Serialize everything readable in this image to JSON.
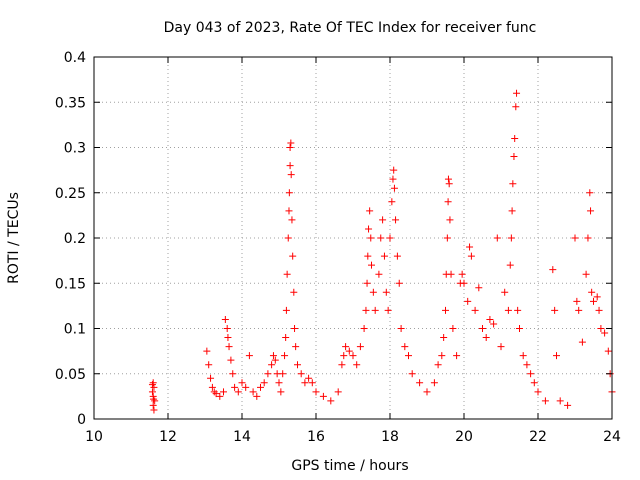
{
  "chart_data": {
    "type": "scatter",
    "title": "Day 043 of 2023, Rate Of TEC Index for receiver func",
    "xlabel": "GPS time / hours",
    "ylabel": "ROTI / TECUs",
    "xlim": [
      10,
      24
    ],
    "ylim": [
      0,
      0.4
    ],
    "x_ticks": [
      10,
      12,
      14,
      16,
      18,
      20,
      22,
      24
    ],
    "y_ticks": [
      0,
      0.05,
      0.1,
      0.15,
      0.2,
      0.25,
      0.3,
      0.35,
      0.4
    ],
    "x_tick_labels": [
      "10",
      "12",
      "14",
      "16",
      "18",
      "20",
      "22",
      "24"
    ],
    "y_tick_labels": [
      "0",
      "0.05",
      "0.1",
      "0.15",
      "0.2",
      "0.25",
      "0.3",
      "0.35",
      "0.4"
    ],
    "grid": true,
    "marker": "plus",
    "color": "#ff0000",
    "series": [
      {
        "values": [
          [
            11.6,
            0.04
          ],
          [
            11.62,
            0.035
          ],
          [
            11.58,
            0.03
          ],
          [
            11.6,
            0.025
          ],
          [
            11.64,
            0.02
          ],
          [
            11.6,
            0.015
          ],
          [
            11.62,
            0.01
          ],
          [
            11.58,
            0.038
          ],
          [
            11.61,
            0.022
          ],
          [
            13.05,
            0.075
          ],
          [
            13.1,
            0.06
          ],
          [
            13.15,
            0.045
          ],
          [
            13.2,
            0.035
          ],
          [
            13.25,
            0.03
          ],
          [
            13.3,
            0.028
          ],
          [
            13.4,
            0.025
          ],
          [
            13.5,
            0.03
          ],
          [
            13.55,
            0.11
          ],
          [
            13.6,
            0.1
          ],
          [
            13.62,
            0.09
          ],
          [
            13.65,
            0.08
          ],
          [
            13.7,
            0.065
          ],
          [
            13.75,
            0.05
          ],
          [
            13.8,
            0.035
          ],
          [
            13.9,
            0.03
          ],
          [
            14.0,
            0.04
          ],
          [
            14.1,
            0.035
          ],
          [
            14.2,
            0.07
          ],
          [
            14.3,
            0.03
          ],
          [
            14.4,
            0.025
          ],
          [
            14.5,
            0.035
          ],
          [
            14.6,
            0.04
          ],
          [
            14.7,
            0.05
          ],
          [
            14.8,
            0.06
          ],
          [
            14.85,
            0.07
          ],
          [
            14.9,
            0.065
          ],
          [
            14.95,
            0.05
          ],
          [
            15.0,
            0.04
          ],
          [
            15.05,
            0.03
          ],
          [
            15.1,
            0.05
          ],
          [
            15.15,
            0.07
          ],
          [
            15.18,
            0.09
          ],
          [
            15.2,
            0.12
          ],
          [
            15.22,
            0.16
          ],
          [
            15.25,
            0.2
          ],
          [
            15.27,
            0.23
          ],
          [
            15.28,
            0.25
          ],
          [
            15.3,
            0.28
          ],
          [
            15.3,
            0.3
          ],
          [
            15.32,
            0.305
          ],
          [
            15.33,
            0.27
          ],
          [
            15.35,
            0.22
          ],
          [
            15.37,
            0.18
          ],
          [
            15.4,
            0.14
          ],
          [
            15.42,
            0.1
          ],
          [
            15.45,
            0.08
          ],
          [
            15.5,
            0.06
          ],
          [
            15.6,
            0.05
          ],
          [
            15.7,
            0.04
          ],
          [
            15.8,
            0.045
          ],
          [
            15.9,
            0.04
          ],
          [
            16.0,
            0.03
          ],
          [
            16.2,
            0.025
          ],
          [
            16.4,
            0.02
          ],
          [
            16.6,
            0.03
          ],
          [
            16.7,
            0.06
          ],
          [
            16.75,
            0.07
          ],
          [
            16.8,
            0.08
          ],
          [
            16.9,
            0.075
          ],
          [
            17.0,
            0.07
          ],
          [
            17.1,
            0.06
          ],
          [
            17.2,
            0.08
          ],
          [
            17.3,
            0.1
          ],
          [
            17.35,
            0.12
          ],
          [
            17.38,
            0.15
          ],
          [
            17.4,
            0.18
          ],
          [
            17.42,
            0.21
          ],
          [
            17.45,
            0.23
          ],
          [
            17.48,
            0.2
          ],
          [
            17.5,
            0.17
          ],
          [
            17.55,
            0.14
          ],
          [
            17.6,
            0.12
          ],
          [
            17.7,
            0.16
          ],
          [
            17.75,
            0.2
          ],
          [
            17.8,
            0.22
          ],
          [
            17.85,
            0.18
          ],
          [
            17.9,
            0.14
          ],
          [
            17.95,
            0.12
          ],
          [
            18.0,
            0.2
          ],
          [
            18.05,
            0.24
          ],
          [
            18.08,
            0.265
          ],
          [
            18.1,
            0.275
          ],
          [
            18.12,
            0.255
          ],
          [
            18.15,
            0.22
          ],
          [
            18.2,
            0.18
          ],
          [
            18.25,
            0.15
          ],
          [
            18.3,
            0.1
          ],
          [
            18.4,
            0.08
          ],
          [
            18.5,
            0.07
          ],
          [
            18.6,
            0.05
          ],
          [
            18.8,
            0.04
          ],
          [
            19.0,
            0.03
          ],
          [
            19.2,
            0.04
          ],
          [
            19.3,
            0.06
          ],
          [
            19.4,
            0.07
          ],
          [
            19.45,
            0.09
          ],
          [
            19.5,
            0.12
          ],
          [
            19.52,
            0.16
          ],
          [
            19.55,
            0.2
          ],
          [
            19.57,
            0.24
          ],
          [
            19.58,
            0.265
          ],
          [
            19.6,
            0.26
          ],
          [
            19.62,
            0.22
          ],
          [
            19.65,
            0.16
          ],
          [
            19.7,
            0.1
          ],
          [
            19.8,
            0.07
          ],
          [
            19.9,
            0.15
          ],
          [
            19.95,
            0.16
          ],
          [
            20.0,
            0.15
          ],
          [
            20.1,
            0.13
          ],
          [
            20.15,
            0.19
          ],
          [
            20.2,
            0.18
          ],
          [
            20.3,
            0.12
          ],
          [
            20.4,
            0.145
          ],
          [
            20.5,
            0.1
          ],
          [
            20.6,
            0.09
          ],
          [
            20.7,
            0.11
          ],
          [
            20.8,
            0.105
          ],
          [
            20.9,
            0.2
          ],
          [
            21.0,
            0.08
          ],
          [
            21.1,
            0.14
          ],
          [
            21.2,
            0.12
          ],
          [
            21.25,
            0.17
          ],
          [
            21.28,
            0.2
          ],
          [
            21.3,
            0.23
          ],
          [
            21.32,
            0.26
          ],
          [
            21.35,
            0.29
          ],
          [
            21.37,
            0.31
          ],
          [
            21.4,
            0.345
          ],
          [
            21.42,
            0.36
          ],
          [
            21.45,
            0.12
          ],
          [
            21.5,
            0.1
          ],
          [
            21.6,
            0.07
          ],
          [
            21.7,
            0.06
          ],
          [
            21.8,
            0.05
          ],
          [
            21.9,
            0.04
          ],
          [
            22.0,
            0.03
          ],
          [
            22.2,
            0.02
          ],
          [
            22.4,
            0.165
          ],
          [
            22.45,
            0.12
          ],
          [
            22.5,
            0.07
          ],
          [
            22.6,
            0.02
          ],
          [
            22.8,
            0.015
          ],
          [
            23.0,
            0.2
          ],
          [
            23.05,
            0.13
          ],
          [
            23.1,
            0.12
          ],
          [
            23.2,
            0.085
          ],
          [
            23.3,
            0.16
          ],
          [
            23.35,
            0.2
          ],
          [
            23.4,
            0.25
          ],
          [
            23.42,
            0.23
          ],
          [
            23.45,
            0.14
          ],
          [
            23.5,
            0.13
          ],
          [
            23.6,
            0.135
          ],
          [
            23.65,
            0.12
          ],
          [
            23.7,
            0.1
          ],
          [
            23.8,
            0.095
          ],
          [
            23.9,
            0.075
          ],
          [
            23.95,
            0.05
          ],
          [
            24.0,
            0.03
          ]
        ]
      }
    ]
  }
}
